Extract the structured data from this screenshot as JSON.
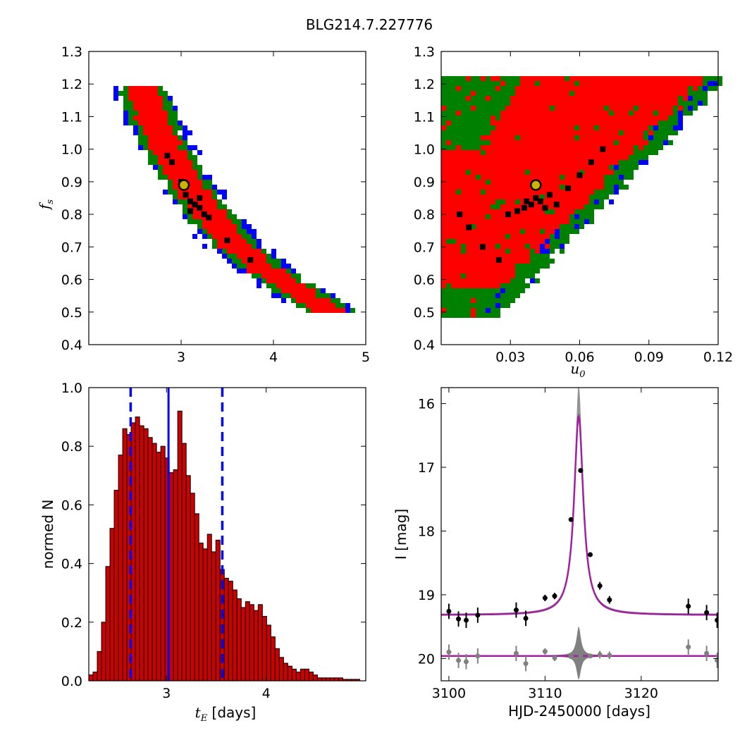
{
  "figure": {
    "title": "BLG214.7.227776"
  },
  "colors": {
    "level1": "#ff0000",
    "level2": "#008000",
    "level3": "#0000ff",
    "best": "#000000",
    "bar_fill": "#cc0000",
    "vline": "#0000ff",
    "model": "#a020a0",
    "band": "#808080",
    "data": "#000000",
    "resid": "#808080",
    "marker_fill": "#c8b400"
  },
  "chart_data": [
    {
      "type": "heatmap",
      "panel": "top-left",
      "xlabel": "",
      "ylabel": "f",
      "ylabel_sub": "s",
      "xlim": [
        2.0,
        5.0
      ],
      "ylim": [
        0.4,
        1.3
      ],
      "xticks": [
        "3",
        "4",
        "5"
      ],
      "yticks": [
        "0.4",
        "0.5",
        "0.6",
        "0.7",
        "0.8",
        "0.9",
        "1.0",
        "1.1",
        "1.2",
        "1.3"
      ],
      "band": {
        "y_range": [
          0.5,
          1.2
        ],
        "x_center_at": [
          [
            0.5,
            4.62
          ],
          [
            0.6,
            4.05
          ],
          [
            0.7,
            3.6
          ],
          [
            0.8,
            3.3
          ],
          [
            0.9,
            3.05
          ],
          [
            1.0,
            2.85
          ],
          [
            1.1,
            2.7
          ],
          [
            1.2,
            2.55
          ]
        ],
        "half_width_red": 0.17,
        "half_width_green": 0.25,
        "half_width_blue": 0.32
      },
      "best_points": [
        [
          3.05,
          0.86
        ],
        [
          3.1,
          0.84
        ],
        [
          3.15,
          0.83
        ],
        [
          3.2,
          0.82
        ],
        [
          3.25,
          0.8
        ],
        [
          2.85,
          0.98
        ],
        [
          2.9,
          0.96
        ],
        [
          3.0,
          0.9
        ],
        [
          3.2,
          0.85
        ],
        [
          3.5,
          0.72
        ],
        [
          3.75,
          0.66
        ],
        [
          3.1,
          0.81
        ],
        [
          3.3,
          0.79
        ]
      ],
      "marker": {
        "x": 3.03,
        "y": 0.89
      }
    },
    {
      "type": "heatmap",
      "panel": "top-right",
      "xlabel": "u",
      "xlabel_sub": "0",
      "ylabel": "",
      "xlim": [
        0.0,
        0.12
      ],
      "ylim": [
        0.4,
        1.3
      ],
      "xticks": [
        "0.03",
        "0.06",
        "0.09",
        "0.12"
      ],
      "yticks": [
        "0.4",
        "0.5",
        "0.6",
        "0.7",
        "0.8",
        "0.9",
        "1.0",
        "1.1",
        "1.2",
        "1.3"
      ],
      "best_points": [
        [
          0.041,
          0.85
        ],
        [
          0.043,
          0.84
        ],
        [
          0.039,
          0.83
        ],
        [
          0.045,
          0.82
        ],
        [
          0.037,
          0.84
        ],
        [
          0.036,
          0.82
        ],
        [
          0.047,
          0.86
        ],
        [
          0.05,
          0.83
        ],
        [
          0.06,
          0.92
        ],
        [
          0.065,
          0.96
        ],
        [
          0.07,
          1.0
        ],
        [
          0.055,
          0.88
        ],
        [
          0.012,
          0.76
        ],
        [
          0.018,
          0.7
        ],
        [
          0.025,
          0.66
        ],
        [
          0.008,
          0.8
        ],
        [
          0.033,
          0.81
        ],
        [
          0.029,
          0.8
        ]
      ],
      "marker": {
        "x": 0.041,
        "y": 0.89
      }
    },
    {
      "type": "bar",
      "panel": "bottom-left",
      "xlabel": "t",
      "xlabel_sub": "E",
      "xlabel_suffix": " [days]",
      "ylabel": "normed N",
      "xlim": [
        2.22,
        5.0
      ],
      "ylim": [
        0.0,
        1.0
      ],
      "xticks": [
        "3",
        "4"
      ],
      "yticks": [
        "0.0",
        "0.2",
        "0.4",
        "0.6",
        "0.8",
        "1.0"
      ],
      "bin_start": 2.22,
      "bin_width": 0.0425,
      "values": [
        0.02,
        0.03,
        0.1,
        0.2,
        0.39,
        0.52,
        0.65,
        0.77,
        0.86,
        0.84,
        0.88,
        0.9,
        0.87,
        0.86,
        0.83,
        0.81,
        0.78,
        0.8,
        0.76,
        0.71,
        0.72,
        0.92,
        0.81,
        0.7,
        0.64,
        0.57,
        0.47,
        0.45,
        0.5,
        0.44,
        0.48,
        0.38,
        0.35,
        0.34,
        0.31,
        0.28,
        0.25,
        0.27,
        0.26,
        0.24,
        0.26,
        0.22,
        0.19,
        0.15,
        0.11,
        0.08,
        0.06,
        0.05,
        0.04,
        0.03,
        0.04,
        0.04,
        0.03,
        0.02,
        0.01,
        0.01,
        0.01,
        0.01,
        0.01,
        0.01,
        0.005,
        0.005,
        0.005,
        0.005,
        0.0
      ],
      "median": 3.02,
      "interval": [
        2.64,
        3.56
      ]
    },
    {
      "type": "line",
      "panel": "bottom-right",
      "xlabel": "HJD-2450000 [days]",
      "ylabel": "I [mag]",
      "xlim": [
        3099.2,
        3128.0
      ],
      "ylim": [
        20.35,
        15.75
      ],
      "xticks": [
        "3100",
        "3110",
        "3120"
      ],
      "yticks": [
        "16",
        "17",
        "18",
        "19",
        "20"
      ],
      "model": {
        "t0": 3113.5,
        "baseline": 19.32,
        "peak_mag": 16.2,
        "width": 0.55,
        "residual_baseline": 19.96
      },
      "data": [
        {
          "x": 3100.0,
          "y": 19.26,
          "err": 0.12
        },
        {
          "x": 3101.0,
          "y": 19.38,
          "err": 0.12
        },
        {
          "x": 3101.8,
          "y": 19.4,
          "err": 0.12
        },
        {
          "x": 3103.0,
          "y": 19.32,
          "err": 0.12
        },
        {
          "x": 3107.0,
          "y": 19.24,
          "err": 0.12
        },
        {
          "x": 3108.0,
          "y": 19.37,
          "err": 0.12
        },
        {
          "x": 3110.0,
          "y": 19.05,
          "err": 0.05
        },
        {
          "x": 3111.0,
          "y": 19.02,
          "err": 0.05
        },
        {
          "x": 3112.7,
          "y": 17.82,
          "err": 0.03
        },
        {
          "x": 3113.7,
          "y": 17.05,
          "err": 0.03
        },
        {
          "x": 3114.7,
          "y": 18.37,
          "err": 0.03
        },
        {
          "x": 3115.7,
          "y": 18.86,
          "err": 0.06
        },
        {
          "x": 3116.7,
          "y": 19.08,
          "err": 0.06
        },
        {
          "x": 3124.9,
          "y": 19.18,
          "err": 0.12
        },
        {
          "x": 3126.8,
          "y": 19.28,
          "err": 0.12
        },
        {
          "x": 3127.9,
          "y": 19.4,
          "err": 0.12
        }
      ],
      "residuals": [
        {
          "x": 3100.0,
          "y": 19.9,
          "err": 0.12
        },
        {
          "x": 3101.0,
          "y": 20.03,
          "err": 0.12
        },
        {
          "x": 3101.8,
          "y": 20.05,
          "err": 0.12
        },
        {
          "x": 3103.0,
          "y": 19.96,
          "err": 0.12
        },
        {
          "x": 3107.0,
          "y": 19.92,
          "err": 0.12
        },
        {
          "x": 3108.0,
          "y": 20.08,
          "err": 0.12
        },
        {
          "x": 3110.0,
          "y": 19.89,
          "err": 0.05
        },
        {
          "x": 3111.0,
          "y": 19.99,
          "err": 0.05
        },
        {
          "x": 3112.7,
          "y": 19.97,
          "err": 0.03
        },
        {
          "x": 3113.7,
          "y": 19.96,
          "err": 0.03
        },
        {
          "x": 3114.7,
          "y": 19.96,
          "err": 0.03
        },
        {
          "x": 3115.7,
          "y": 19.94,
          "err": 0.06
        },
        {
          "x": 3116.7,
          "y": 19.95,
          "err": 0.06
        },
        {
          "x": 3124.9,
          "y": 19.82,
          "err": 0.12
        },
        {
          "x": 3126.8,
          "y": 19.92,
          "err": 0.12
        },
        {
          "x": 3127.9,
          "y": 20.03,
          "err": 0.12
        }
      ]
    }
  ]
}
